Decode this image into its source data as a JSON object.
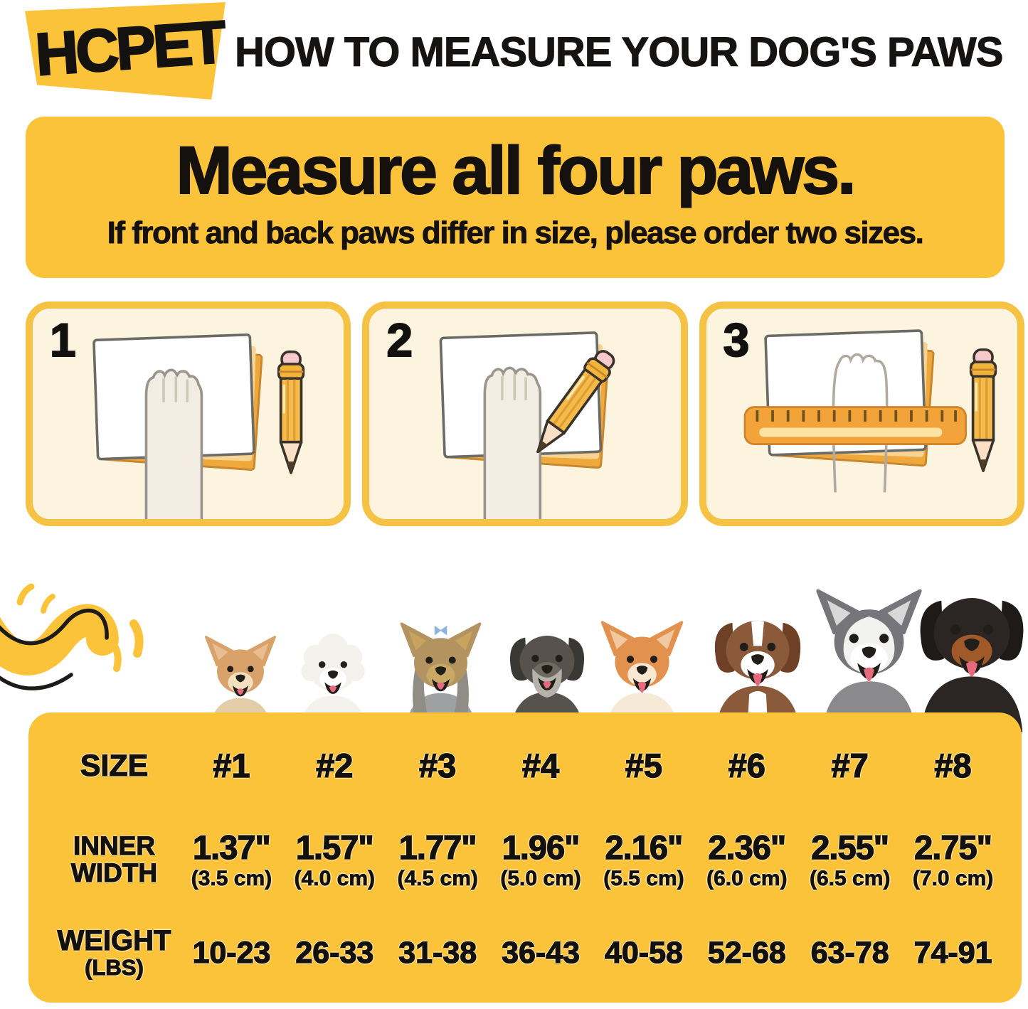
{
  "header": {
    "logo_text": "HCPET",
    "title": "HOW TO MEASURE YOUR DOG'S PAWS"
  },
  "banner": {
    "heading": "Measure all four paws.",
    "subheading": "If front and back paws differ in size, please order two sizes."
  },
  "steps": [
    {
      "number": "1"
    },
    {
      "number": "2"
    },
    {
      "number": "3"
    }
  ],
  "dogs": [
    "chihuahua",
    "bichon-frise",
    "yorkshire-terrier",
    "miniature-schnauzer",
    "shiba-inu",
    "australian-shepherd",
    "alaskan-malamute",
    "rottweiler"
  ],
  "size_table": {
    "row_labels": {
      "size": "SIZE",
      "inner_width_line1": "INNER",
      "inner_width_line2": "WIDTH",
      "weight_line1": "WEIGHT",
      "weight_line2": "(LBS)"
    },
    "sizes": [
      "#1",
      "#2",
      "#3",
      "#4",
      "#5",
      "#6",
      "#7",
      "#8"
    ],
    "inner_width_in": [
      "1.37\"",
      "1.57\"",
      "1.77\"",
      "1.96\"",
      "2.16\"",
      "2.36\"",
      "2.55\"",
      "2.75\""
    ],
    "inner_width_cm": [
      "(3.5 cm)",
      "(4.0 cm)",
      "(4.5 cm)",
      "(5.0 cm)",
      "(5.5 cm)",
      "(6.0 cm)",
      "(6.5 cm)",
      "(7.0 cm)"
    ],
    "weight_lbs": [
      "10-23",
      "26-33",
      "31-38",
      "36-43",
      "40-58",
      "52-68",
      "63-78",
      "74-91"
    ]
  },
  "colors": {
    "brand_yellow": "#FBC339",
    "card_cream": "#FCF4DF",
    "card_border": "#F5C243",
    "text_black": "#14110D"
  }
}
